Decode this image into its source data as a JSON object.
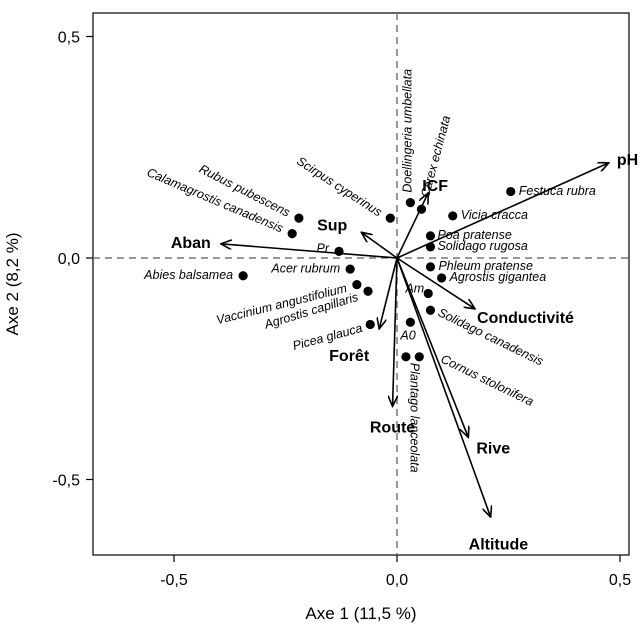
{
  "chart_data": {
    "type": "scatter",
    "subtype": "ordination-biplot",
    "xlabel": "Axe 1 (11,5 %)",
    "ylabel": "Axe 2 (8,2 %)",
    "xlim": [
      -0.69,
      0.52
    ],
    "ylim": [
      -0.67,
      0.57
    ],
    "x_ticks": [
      {
        "value": -0.5,
        "label": "-0,5"
      },
      {
        "value": 0.0,
        "label": "0,0"
      },
      {
        "value": 0.5,
        "label": "0,5"
      }
    ],
    "y_ticks": [
      {
        "value": -0.5,
        "label": "-0,5"
      },
      {
        "value": 0.0,
        "label": "0,0"
      },
      {
        "value": 0.5,
        "label": "0,5"
      }
    ],
    "grid": false,
    "reference_lines": {
      "x": 0,
      "y": 0,
      "style": "dashed",
      "color": "#777777"
    },
    "vectors": [
      {
        "name": "pH",
        "x": 0.475,
        "y": 0.215
      },
      {
        "name": "ICF",
        "x": 0.07,
        "y": 0.147
      },
      {
        "name": "Sup",
        "x": -0.08,
        "y": 0.058
      },
      {
        "name": "Aban",
        "x": -0.395,
        "y": 0.032
      },
      {
        "name": "Conductivité",
        "x": 0.175,
        "y": -0.115
      },
      {
        "name": "Forêt",
        "x": -0.04,
        "y": -0.16
      },
      {
        "name": "Route",
        "x": -0.01,
        "y": -0.335
      },
      {
        "name": "Rive",
        "x": 0.16,
        "y": -0.405
      },
      {
        "name": "Altitude",
        "x": 0.21,
        "y": -0.585
      }
    ],
    "species": [
      {
        "name": "Festuca rubra",
        "x": 0.255,
        "y": 0.15,
        "label_angle": 0
      },
      {
        "name": "Vicia cracca",
        "x": 0.125,
        "y": 0.095,
        "label_angle": 0
      },
      {
        "name": "Poa pratense",
        "x": 0.075,
        "y": 0.05,
        "label_angle": 0
      },
      {
        "name": "Solidago rugosa",
        "x": 0.075,
        "y": 0.025,
        "label_angle": 0
      },
      {
        "name": "Phleum pratense",
        "x": 0.075,
        "y": -0.02,
        "label_angle": 0
      },
      {
        "name": "Agrostis gigantea",
        "x": 0.1,
        "y": -0.045,
        "label_angle": 0
      },
      {
        "name": "Solidago canadensis",
        "x": 0.075,
        "y": -0.118,
        "label_angle": 26
      },
      {
        "name": "Cornus stolonifera",
        "x": 0.05,
        "y": -0.223,
        "label_angle": 26
      },
      {
        "name": "Plantago lanceolata",
        "x": 0.02,
        "y": -0.223,
        "label_angle": 90
      },
      {
        "name": "Doellingeria umbellata",
        "x": 0.03,
        "y": 0.125,
        "label_angle": -90
      },
      {
        "name": "Carex echinata",
        "x": 0.055,
        "y": 0.11,
        "label_angle": -75
      },
      {
        "name": "Scirpus cyperinus",
        "x": -0.015,
        "y": 0.09,
        "label_angle": 33
      },
      {
        "name": "Rubus pubescens",
        "x": -0.22,
        "y": 0.09,
        "label_angle": 27
      },
      {
        "name": "Calamagrostis canadensis",
        "x": -0.235,
        "y": 0.055,
        "label_angle": 23
      },
      {
        "name": "Abies balsamea",
        "x": -0.345,
        "y": -0.04,
        "label_angle": 0
      },
      {
        "name": "Acer rubrum",
        "x": -0.105,
        "y": -0.025,
        "label_angle": 0
      },
      {
        "name": "Vaccinium angustifolium",
        "x": -0.09,
        "y": -0.06,
        "label_angle": -14
      },
      {
        "name": "Agrostis capillaris",
        "x": -0.065,
        "y": -0.075,
        "label_angle": -17
      },
      {
        "name": "Picea glauca",
        "x": -0.06,
        "y": -0.15,
        "label_angle": -15
      },
      {
        "name": "A0",
        "x": 0.03,
        "y": -0.145,
        "label_angle": 0
      },
      {
        "name": "Pr",
        "x": -0.13,
        "y": 0.015,
        "label_angle": 0
      },
      {
        "name": "Am",
        "x": 0.07,
        "y": -0.08,
        "label_angle": 0
      }
    ]
  }
}
